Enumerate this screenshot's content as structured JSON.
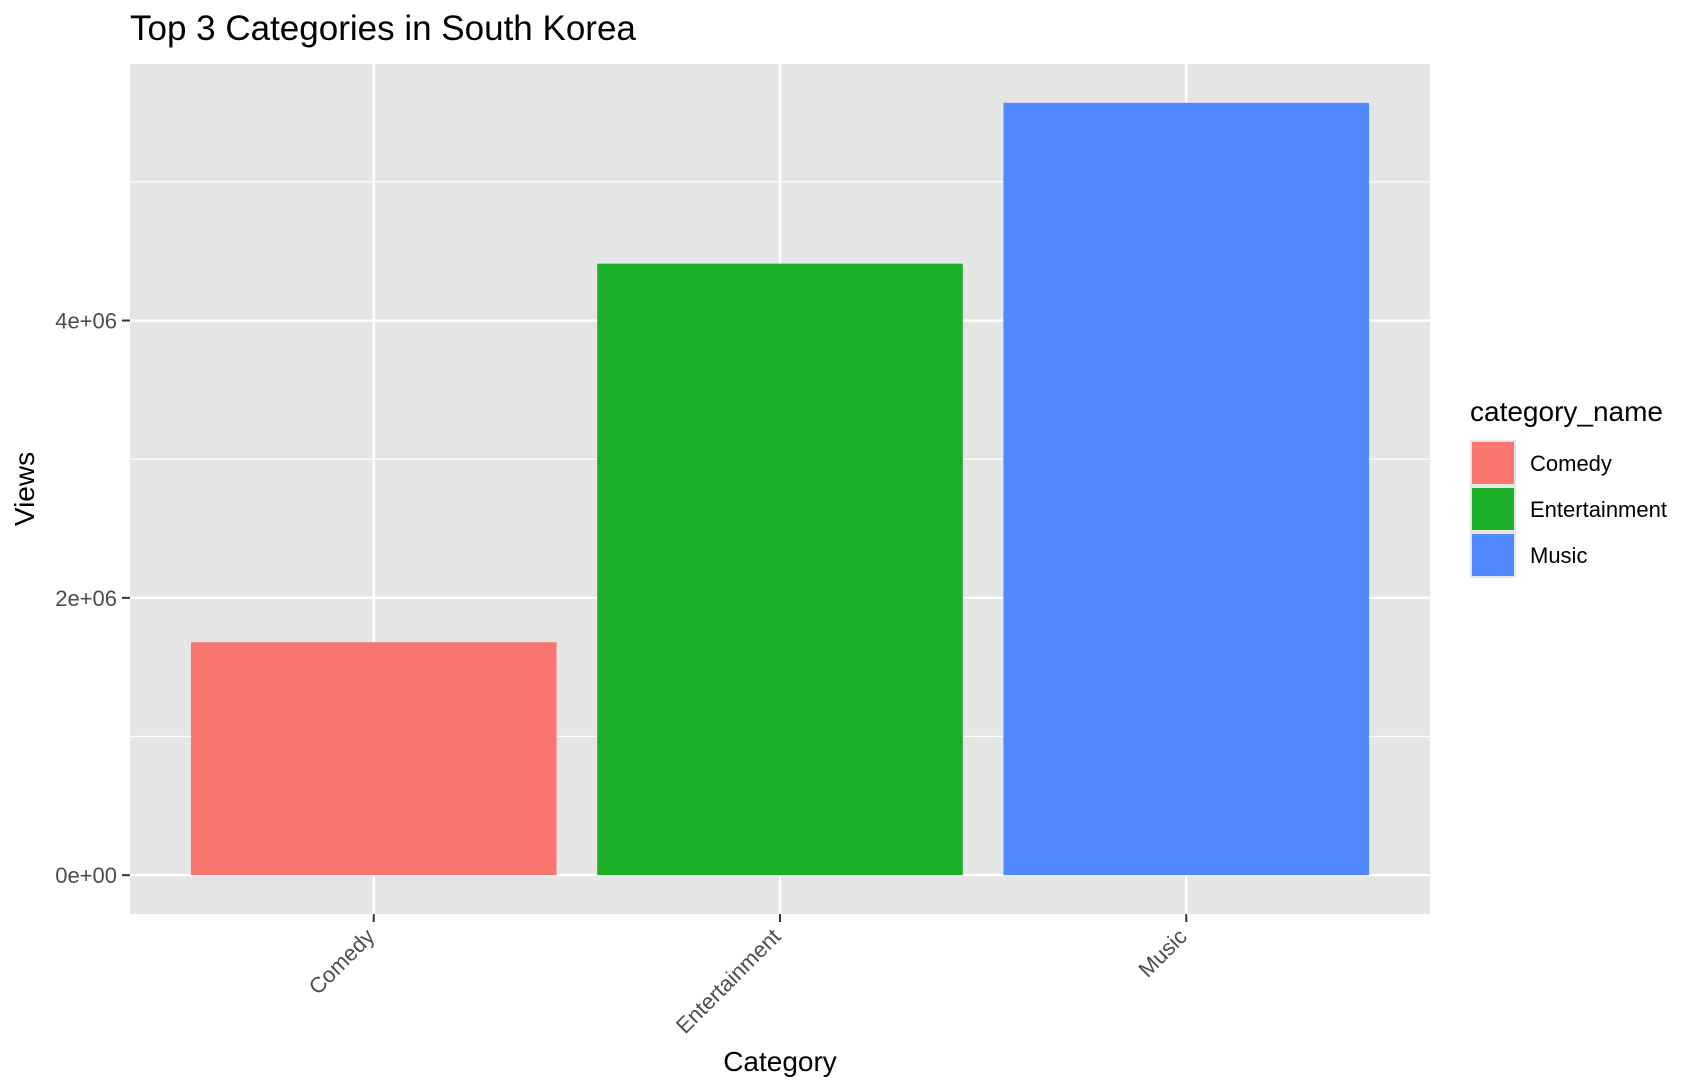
{
  "chart_data": {
    "type": "bar",
    "title": "Top 3 Categories in South Korea",
    "xlabel": "Category",
    "ylabel": "Views",
    "categories": [
      "Comedy",
      "Entertainment",
      "Music"
    ],
    "values": [
      1680000,
      4410000,
      5570000
    ],
    "ylim": [
      -280000,
      5850000
    ],
    "y_ticks": [
      0,
      2000000,
      4000000
    ],
    "y_tick_labels": [
      "0e+00",
      "2e+06",
      "4e+06"
    ],
    "grid": true,
    "legend": {
      "title": "category_name",
      "position": "right",
      "entries": [
        "Comedy",
        "Entertainment",
        "Music"
      ]
    },
    "colors": {
      "Comedy": "#F8766D",
      "Entertainment": "#1BB027",
      "Music": "#5187FF"
    },
    "panel_background": "#E5E5E5",
    "gridline_color": "#FFFFFF"
  }
}
